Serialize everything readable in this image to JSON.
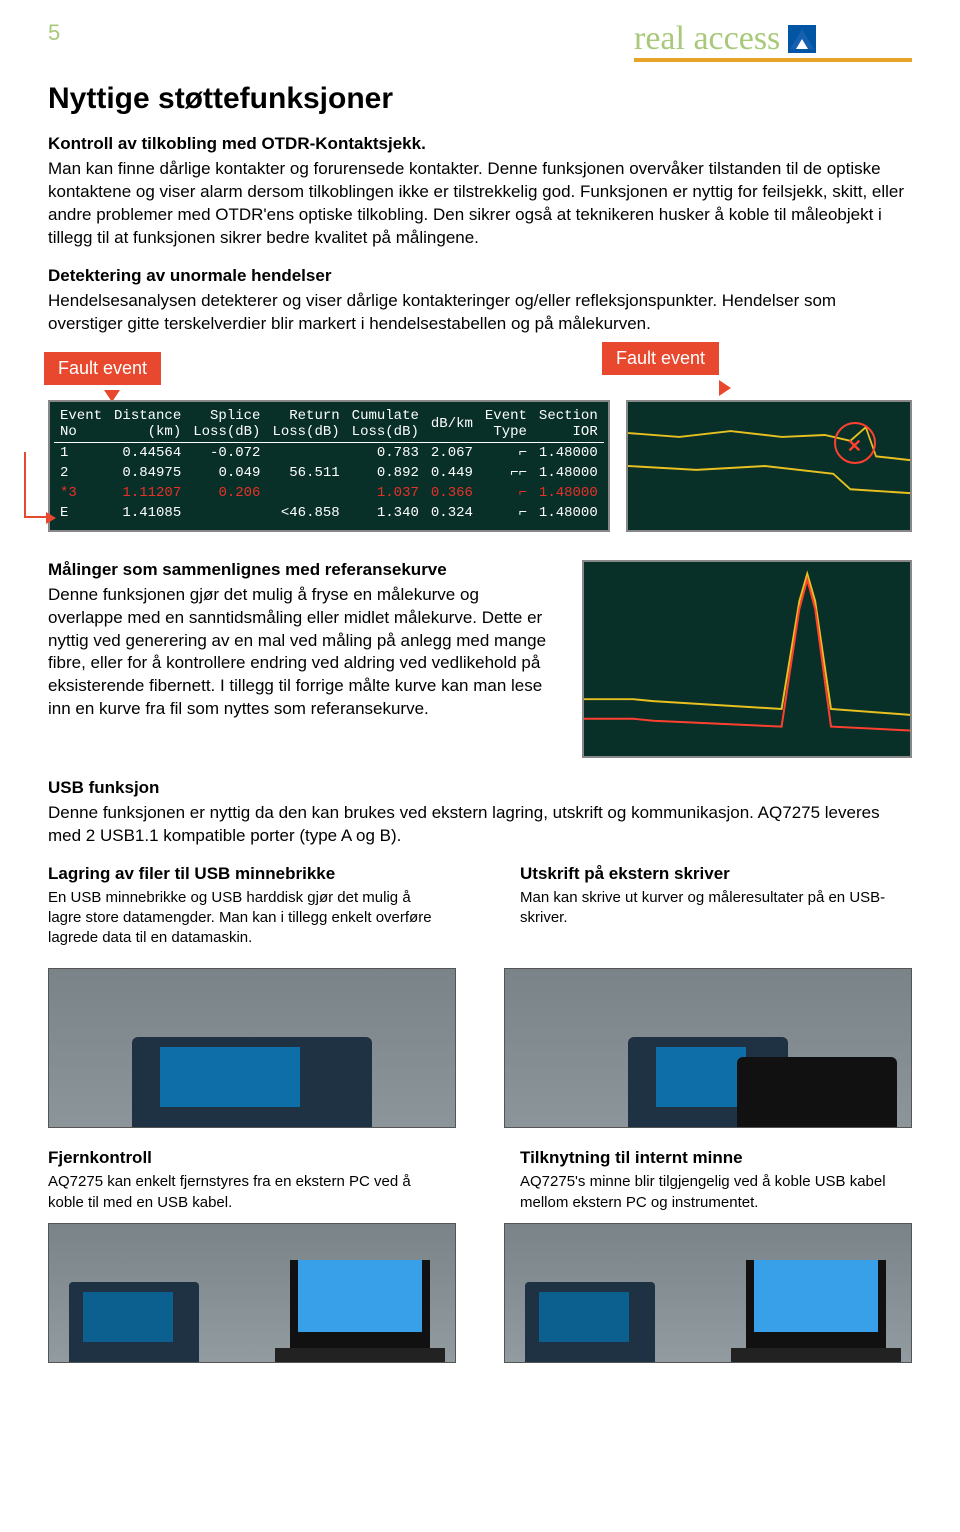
{
  "header": {
    "page_number": "5",
    "brand_text": "real access"
  },
  "title": "Nyttige støttefunksjoner",
  "section1": {
    "heading": "Kontroll av tilkobling med OTDR-Kontaktsjekk.",
    "body": "Man kan finne dårlige kontakter og forurensede kontakter.\nDenne funksjonen overvåker tilstanden til de optiske kontaktene og viser alarm dersom tilkoblingen ikke er tilstrekkelig god. Funksjonen er nyttig for feilsjekk, skitt, eller andre problemer med OTDR'ens optiske tilkobling. Den sikrer også at teknikeren husker å koble til måleobjekt i tillegg til at funksjonen sikrer bedre kvalitet på målingene."
  },
  "section2": {
    "heading": "Detektering av unormale hendelser",
    "body": "Hendelsesanalysen detekterer og viser dårlige kontakteringer og/eller refleksjonspunkter. Hendelser som overstiger gitte terskelverdier blir markert i hendelsestabellen og på målekurven."
  },
  "fault_label": "Fault event",
  "event_table": {
    "headers_line1": [
      "Event",
      "Distance",
      "Splice",
      "Return",
      "Cumulate",
      "dB/km",
      "Event",
      "Section"
    ],
    "headers_line2": [
      "No",
      "(km)",
      "Loss(dB)",
      "Loss(dB)",
      "Loss(dB)",
      "",
      "Type",
      "IOR"
    ],
    "rows": [
      {
        "no": "1",
        "dist": "0.44564",
        "splice": "-0.072",
        "ret": "",
        "cum": "0.783",
        "dbkm": "2.067",
        "type": "⌐",
        "ior": "1.48000",
        "fault": false
      },
      {
        "no": "2",
        "dist": "0.84975",
        "splice": "0.049",
        "ret": "56.511",
        "cum": "0.892",
        "dbkm": "0.449",
        "type": "⌐⌐",
        "ior": "1.48000",
        "fault": false
      },
      {
        "no": "*3",
        "dist": "1.11207",
        "splice": "0.206",
        "ret": "",
        "cum": "1.037",
        "dbkm": "0.366",
        "type": "⌐",
        "ior": "1.48000",
        "fault": true
      },
      {
        "no": "E",
        "dist": "1.41085",
        "splice": "",
        "ret": "<46.858",
        "cum": "1.340",
        "dbkm": "0.324",
        "type": "⌐",
        "ior": "1.48000",
        "fault": false
      }
    ],
    "colors": {
      "bg": "#083028",
      "text": "#ffffff",
      "fault_row": "#e83028",
      "trace_yellow": "#e8c020",
      "trace_red": "#ff4030"
    }
  },
  "section3": {
    "heading": "Målinger som sammenlignes med referansekurve",
    "body": "Denne funksjonen gjør det mulig å fryse en målekurve og overlappe med en sanntidsmåling eller midlet målekurve. Dette er nyttig ved generering av en mal ved måling på anlegg med mange fibre, eller for å kontrollere endring ved aldring ved vedlikehold på eksisterende fibernett. I tillegg til forrige målte kurve kan man lese inn en kurve fra fil som nyttes som referansekurve."
  },
  "section4": {
    "heading": "USB funksjon",
    "body": "Denne funksjonen er nyttig da den kan brukes ved ekstern lagring, utskrift og kommunikasjon. AQ7275 leveres med 2 USB1.1 kompatible porter (type A og B)."
  },
  "usb_left": {
    "heading": "Lagring av filer til USB minnebrikke",
    "body": "En USB minnebrikke og USB harddisk gjør det mulig å lagre store datamengder. Man kan i tillegg enkelt overføre lagrede data til en datamaskin."
  },
  "usb_right": {
    "heading": "Utskrift på ekstern skriver",
    "body": "Man kan skrive ut kurver og måleresultater på en USB-skriver."
  },
  "remote_left": {
    "heading": "Fjernkontroll",
    "body": "AQ7275 kan enkelt fjernstyres fra en ekstern PC ved å koble til med en USB kabel."
  },
  "remote_right": {
    "heading": "Tilknytning til internt minne",
    "body": "AQ7275's minne blir tilgjengelig ved å koble USB kabel mellom ekstern PC og instrumentet."
  }
}
